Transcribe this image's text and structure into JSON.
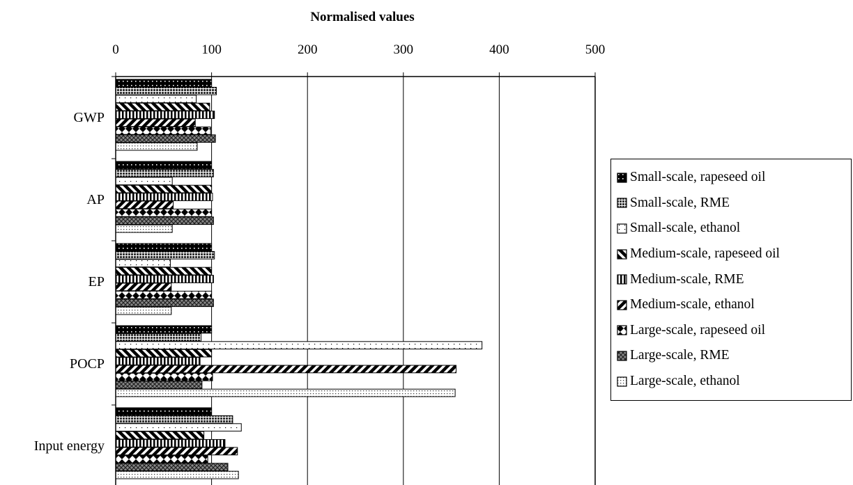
{
  "chart_data": {
    "type": "bar",
    "orientation": "horizontal",
    "title": "Normalised values",
    "xlabel": "",
    "ylabel": "",
    "xlim": [
      0,
      500
    ],
    "x_ticks": [
      "0",
      "100",
      "200",
      "300",
      "400",
      "500"
    ],
    "x_axis_position": "top",
    "grid": "vertical major gridlines",
    "legend_position": "right",
    "categories": [
      "GWP",
      "AP",
      "EP",
      "POCP",
      "Input energy"
    ],
    "series": [
      {
        "name": "Small-scale, rapeseed oil",
        "pattern": "dark-dots",
        "values": [
          100,
          100,
          100,
          100,
          100
        ]
      },
      {
        "name": "Small-scale, RME",
        "pattern": "dense-grid",
        "values": [
          105,
          102,
          103,
          89,
          122
        ]
      },
      {
        "name": "Small-scale, ethanol",
        "pattern": "sparse-dots",
        "values": [
          84,
          59,
          57,
          382,
          131
        ]
      },
      {
        "name": "Medium-scale, rapeseed oil",
        "pattern": "diagonal-stripes-back",
        "values": [
          98,
          100,
          100,
          100,
          92
        ]
      },
      {
        "name": "Medium-scale, RME",
        "pattern": "vertical-stripes",
        "values": [
          103,
          101,
          102,
          88,
          114
        ]
      },
      {
        "name": "Medium-scale, ethanol",
        "pattern": "diagonal-stripes-forward",
        "values": [
          83,
          60,
          58,
          355,
          127
        ]
      },
      {
        "name": "Large-scale, rapeseed oil",
        "pattern": "diamonds",
        "values": [
          99,
          100,
          100,
          101,
          96
        ]
      },
      {
        "name": "Large-scale, RME",
        "pattern": "cross-hatch",
        "values": [
          104,
          102,
          102,
          90,
          117
        ]
      },
      {
        "name": "Large-scale, ethanol",
        "pattern": "fine-dots",
        "values": [
          85,
          59,
          58,
          354,
          128
        ]
      }
    ]
  }
}
